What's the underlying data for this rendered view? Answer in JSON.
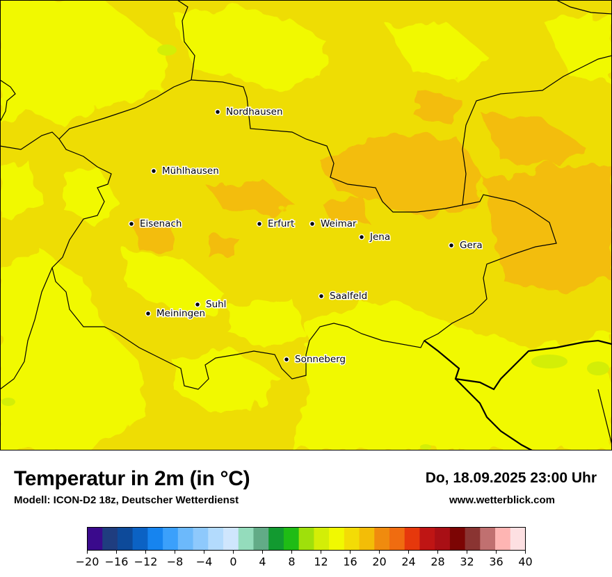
{
  "title": "Temperatur in 2m (in °C)",
  "model": "Modell: ICON-D2 18z, Deutscher Wetterdienst",
  "datetime": "Do, 18.09.2025 23:00 Uhr",
  "website": "www.wetterblick.com",
  "cities": [
    {
      "name": "Nordhausen"
    },
    {
      "name": "Mühlhausen"
    },
    {
      "name": "Eisenach"
    },
    {
      "name": "Erfurt"
    },
    {
      "name": "Weimar"
    },
    {
      "name": "Jena"
    },
    {
      "name": "Gera"
    },
    {
      "name": "Saalfeld"
    },
    {
      "name": "Suhl"
    },
    {
      "name": "Meiningen"
    },
    {
      "name": "Sonneberg"
    }
  ],
  "legend": {
    "ticks": [
      "−20",
      "−16",
      "−12",
      "−8",
      "−4",
      "0",
      "4",
      "8",
      "12",
      "16",
      "20",
      "24",
      "28",
      "32",
      "36",
      "40"
    ],
    "colors": [
      "#3a0a8c",
      "#1f3d7f",
      "#0d4a9a",
      "#0b62c4",
      "#1684ef",
      "#3ba0fb",
      "#6cb9fb",
      "#8ec9fc",
      "#b3dbfd",
      "#cfe6fd",
      "#94dcbc",
      "#62ab87",
      "#129a30",
      "#1fbc15",
      "#9fe00b",
      "#d3ee07",
      "#f1f901",
      "#f3dc06",
      "#f3bd07",
      "#f08b0e",
      "#f06c10",
      "#e6380c",
      "#bf1514",
      "#a90f15",
      "#7c0504",
      "#8a3432",
      "#c07070",
      "#feb5b3",
      "#fde0e2"
    ]
  }
}
